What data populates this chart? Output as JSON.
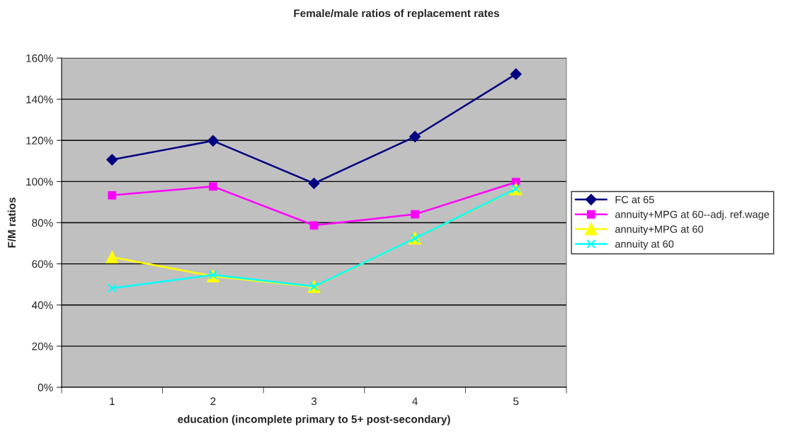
{
  "chart_data": {
    "type": "line",
    "title": "Female/male ratios of replacement rates",
    "xlabel": "education (incomplete primary to 5+ post-secondary)",
    "ylabel": "F/M ratios",
    "categories": [
      "1",
      "2",
      "3",
      "4",
      "5"
    ],
    "series": [
      {
        "name": "FC at 65",
        "color": "#000080",
        "marker": "diamond",
        "values": [
          110.6,
          119.8,
          99.1,
          121.8,
          152.2
        ]
      },
      {
        "name": "annuity+MPG at 60--adj. ref.wage",
        "color": "#ff00ff",
        "marker": "square",
        "values": [
          93.3,
          97.6,
          78.7,
          84.1,
          99.7
        ]
      },
      {
        "name": "annuity+MPG at 60",
        "color": "#ffff00",
        "marker": "triangle",
        "values": [
          63.2,
          54.0,
          48.8,
          72.4,
          96.3
        ]
      },
      {
        "name": "annuity at 60",
        "color": "#00ffff",
        "marker": "cross",
        "values": [
          48.2,
          54.6,
          49.0,
          72.4,
          96.5
        ]
      }
    ],
    "ylim": [
      0,
      160
    ],
    "yticks": [
      {
        "value": 0,
        "label": "0%"
      },
      {
        "value": 20,
        "label": "20%"
      },
      {
        "value": 40,
        "label": "40%"
      },
      {
        "value": 60,
        "label": "60%"
      },
      {
        "value": 80,
        "label": "80%"
      },
      {
        "value": 100,
        "label": "100%"
      },
      {
        "value": 120,
        "label": "120%"
      },
      {
        "value": 140,
        "label": "140%"
      },
      {
        "value": 160,
        "label": "160%"
      }
    ],
    "grid": "y",
    "legend": "right",
    "line_style": "solid"
  }
}
